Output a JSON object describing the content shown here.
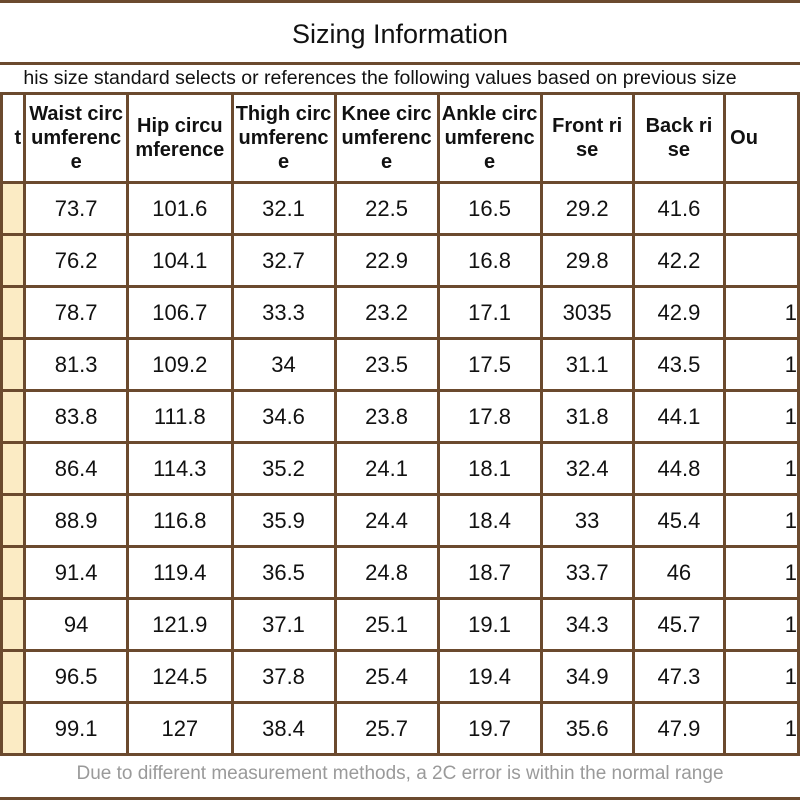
{
  "title": "Sizing Information",
  "subtitle": "his size standard selects or references the following values based on previous size",
  "columns": [
    {
      "label": "t",
      "clipped": true
    },
    {
      "label": "Waist circumference"
    },
    {
      "label": "Hip circumference"
    },
    {
      "label": "Thigh circumference"
    },
    {
      "label": "Knee circumference"
    },
    {
      "label": "Ankle circumference"
    },
    {
      "label": "Front rise"
    },
    {
      "label": "Back rise"
    },
    {
      "label": "Ou",
      "clipped": true
    }
  ],
  "rows": [
    {
      "size": "",
      "values": [
        "73.7",
        "101.6",
        "32.1",
        "22.5",
        "16.5",
        "29.2",
        "41.6"
      ],
      "last": ""
    },
    {
      "size": "",
      "values": [
        "76.2",
        "104.1",
        "32.7",
        "22.9",
        "16.8",
        "29.8",
        "42.2"
      ],
      "last": ""
    },
    {
      "size": "",
      "values": [
        "78.7",
        "106.7",
        "33.3",
        "23.2",
        "17.1",
        "3035",
        "42.9"
      ],
      "last": "1"
    },
    {
      "size": "",
      "values": [
        "81.3",
        "109.2",
        "34",
        "23.5",
        "17.5",
        "31.1",
        "43.5"
      ],
      "last": "1"
    },
    {
      "size": "",
      "values": [
        "83.8",
        "111.8",
        "34.6",
        "23.8",
        "17.8",
        "31.8",
        "44.1"
      ],
      "last": "1"
    },
    {
      "size": "",
      "values": [
        "86.4",
        "114.3",
        "35.2",
        "24.1",
        "18.1",
        "32.4",
        "44.8"
      ],
      "last": "1"
    },
    {
      "size": "",
      "values": [
        "88.9",
        "116.8",
        "35.9",
        "24.4",
        "18.4",
        "33",
        "45.4"
      ],
      "last": "1"
    },
    {
      "size": "",
      "values": [
        "91.4",
        "119.4",
        "36.5",
        "24.8",
        "18.7",
        "33.7",
        "46"
      ],
      "last": "1"
    },
    {
      "size": "",
      "values": [
        "94",
        "121.9",
        "37.1",
        "25.1",
        "19.1",
        "34.3",
        "45.7"
      ],
      "last": "1"
    },
    {
      "size": "",
      "values": [
        "96.5",
        "124.5",
        "37.8",
        "25.4",
        "19.4",
        "34.9",
        "47.3"
      ],
      "last": "1"
    },
    {
      "size": "",
      "values": [
        "99.1",
        "127",
        "38.4",
        "25.7",
        "19.7",
        "35.6",
        "47.9"
      ],
      "last": "1"
    }
  ],
  "footer": "Due to different measurement methods, a 2C error is within the normal range",
  "colors": {
    "border": "#6b4a2e",
    "size_column_bg": "#fbebc4",
    "footer_text": "#9a9a9a"
  }
}
